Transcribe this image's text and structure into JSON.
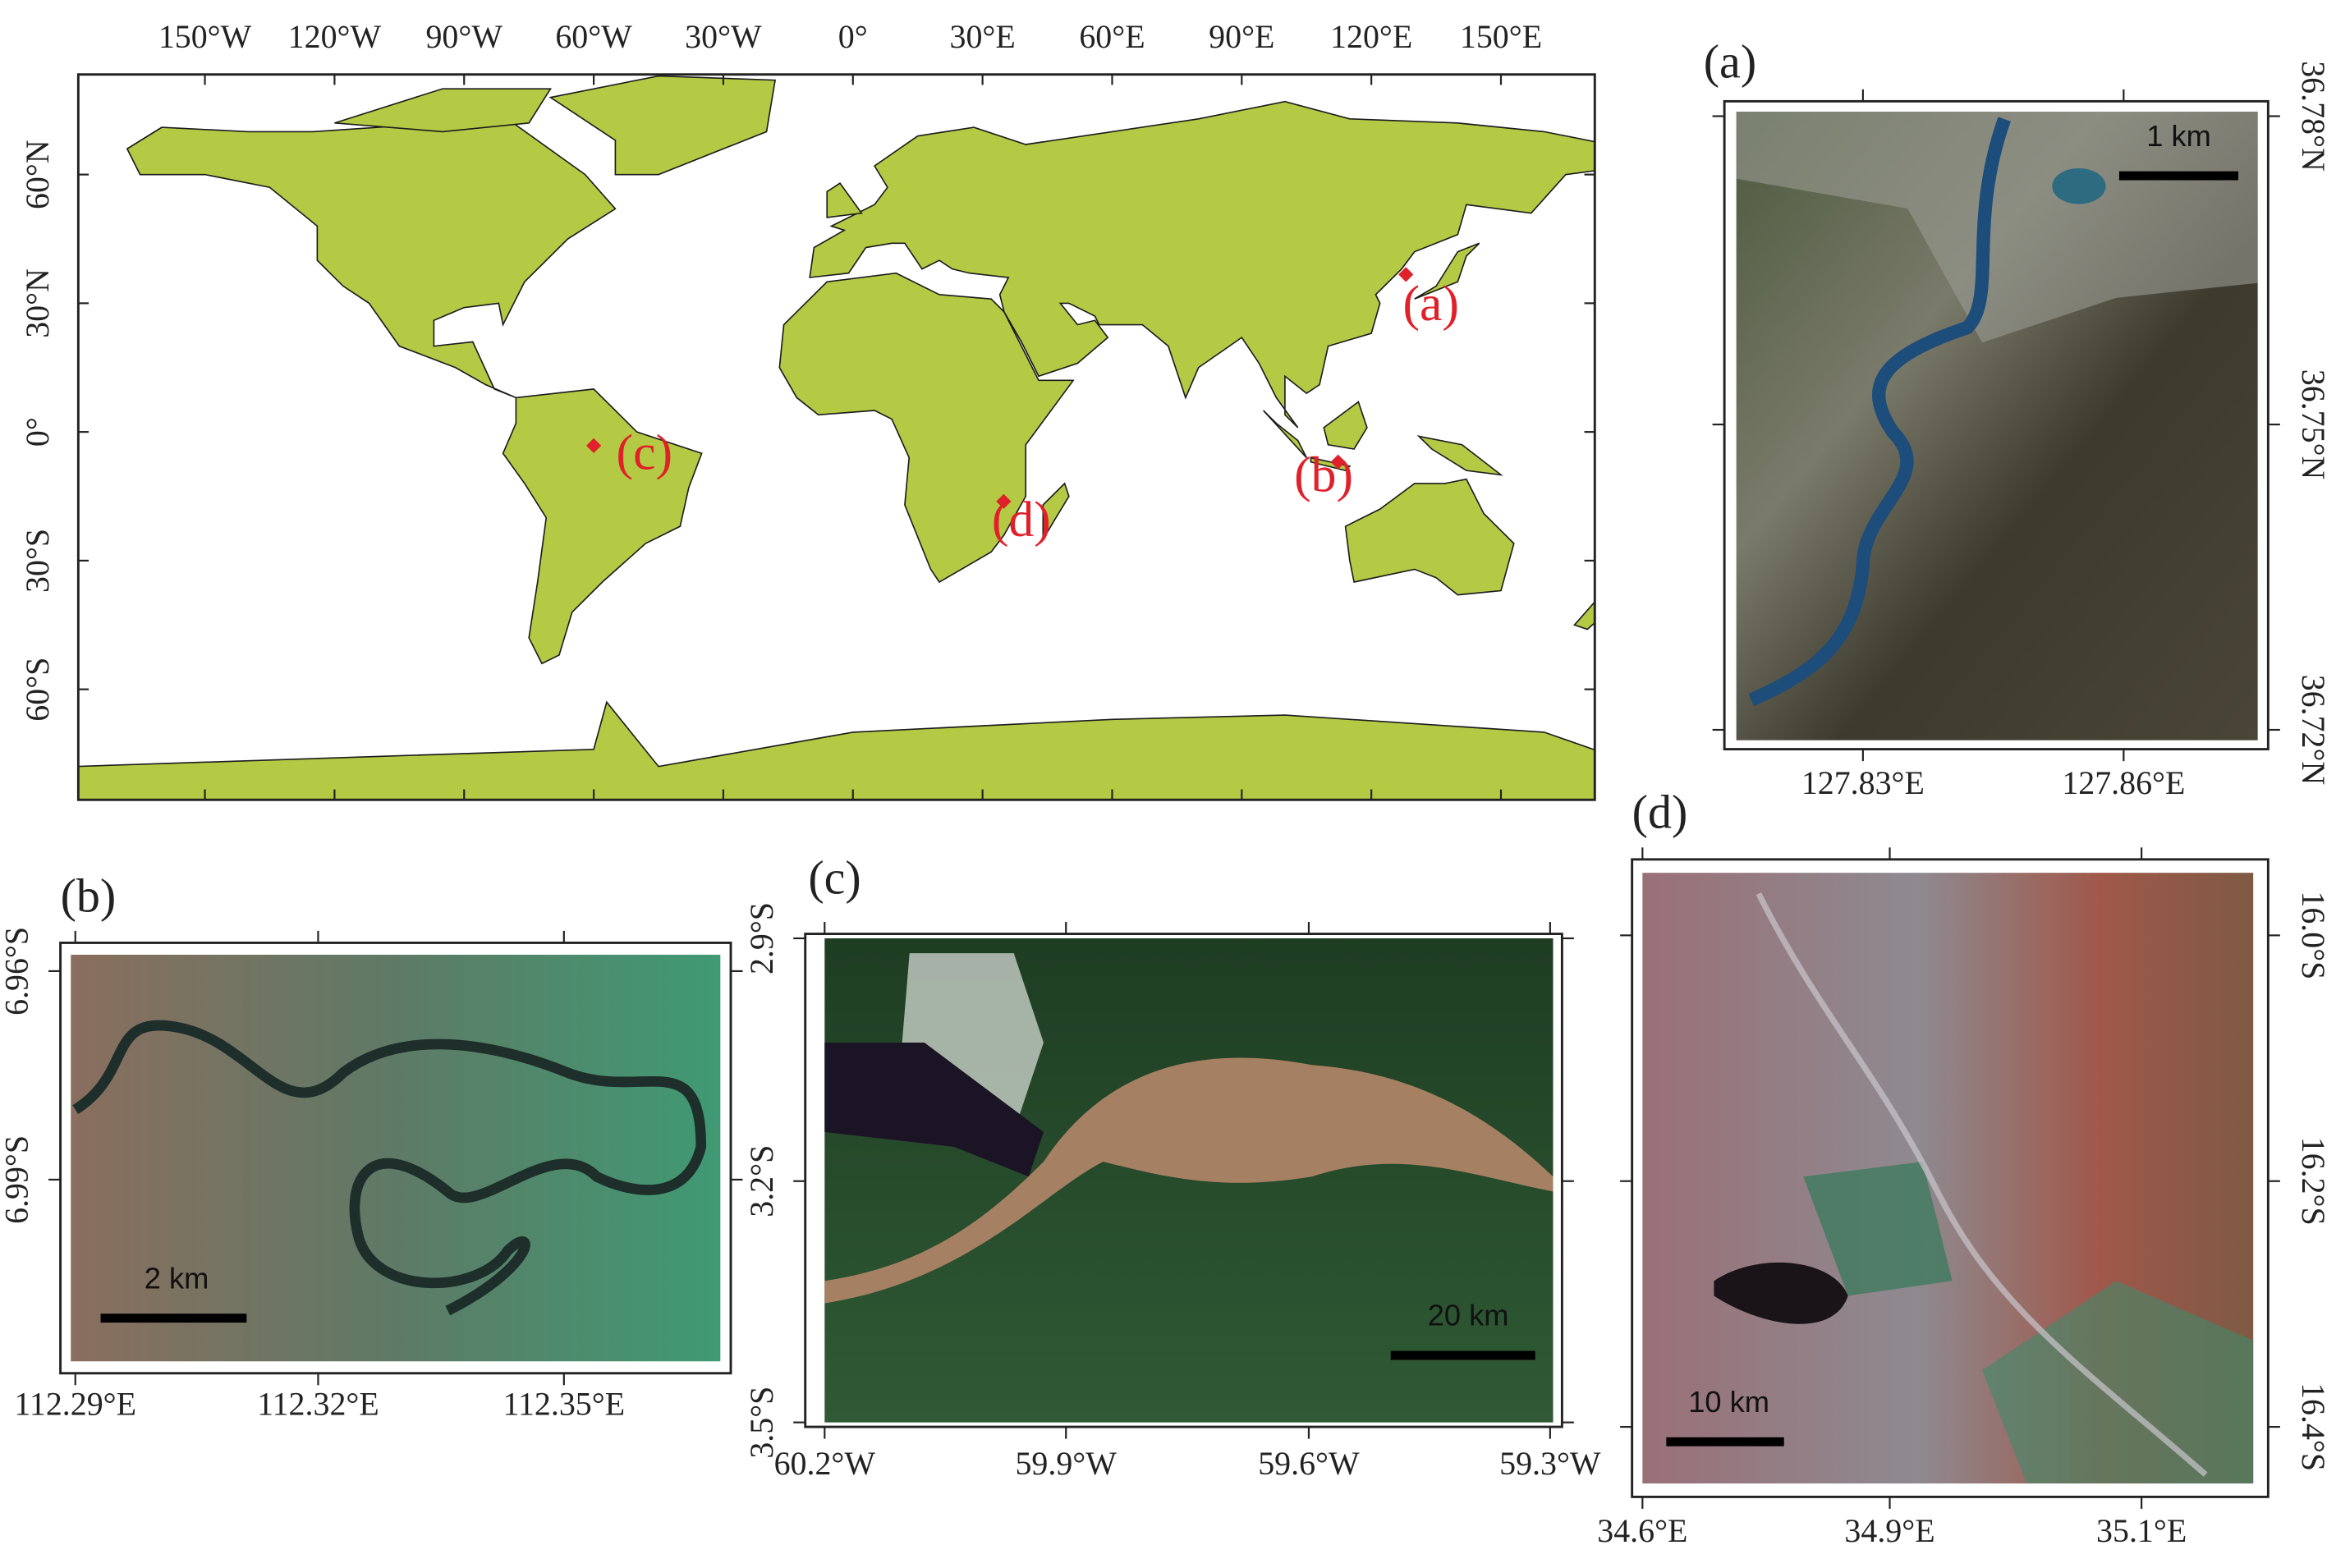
{
  "world_map": {
    "x_tick_labels": [
      "150°W",
      "120°W",
      "90°W",
      "60°W",
      "30°W",
      "0°",
      "30°E",
      "60°E",
      "90°E",
      "120°E",
      "150°E"
    ],
    "y_tick_labels": [
      "60°N",
      "30°N",
      "0°",
      "30°S",
      "60°S"
    ],
    "marker_labels": [
      "(a)",
      "(b)",
      "(c)",
      "(d)"
    ]
  },
  "panels": [
    {
      "label": "(a)",
      "x_tick_labels": [
        "127.83°E",
        "127.86°E"
      ],
      "y_tick_labels": [
        "36.78°N",
        "36.75°N",
        "36.72°N"
      ],
      "scale_bar": "1 km"
    },
    {
      "label": "(b)",
      "x_tick_labels": [
        "112.29°E",
        "112.32°E",
        "112.35°E"
      ],
      "y_tick_labels": [
        "6.96°S",
        "6.99°S"
      ],
      "scale_bar": "2 km"
    },
    {
      "label": "(c)",
      "x_tick_labels": [
        "60.2°W",
        "59.9°W",
        "59.6°W",
        "59.3°W"
      ],
      "y_tick_labels": [
        "2.9°S",
        "3.2°S",
        "3.5°S"
      ],
      "scale_bar": "20 km"
    },
    {
      "label": "(d)",
      "x_tick_labels": [
        "34.6°E",
        "34.9°E",
        "35.1°E"
      ],
      "y_tick_labels": [
        "16.0°S",
        "16.2°S",
        "16.4°S"
      ],
      "scale_bar": "10 km"
    }
  ]
}
